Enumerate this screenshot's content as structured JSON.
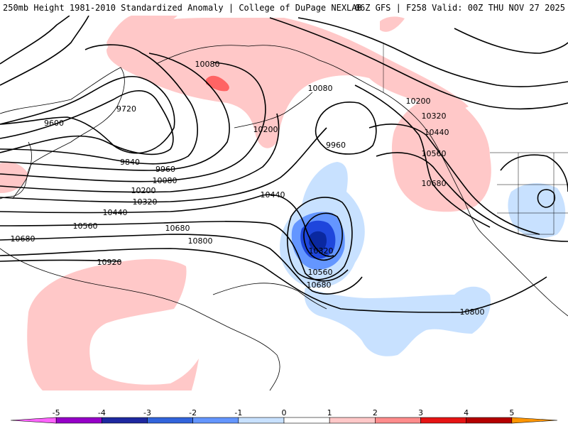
{
  "header": {
    "title": "250mb Height 1981-2010 Standardized Anomaly | College of DuPage NEXLAB",
    "run_info": "06Z GFS | F258 Valid: 00Z THU NOV 27 2025"
  },
  "colors": {
    "pos1": "#ffc8c8",
    "pos2": "#ff6464",
    "neg1": "#c8e1ff",
    "neg2": "#6496ff",
    "neg3": "#1e46dc",
    "neg4": "#0a28a0",
    "contour": "#000000",
    "coast": "#000000"
  },
  "contour_labels": [
    {
      "name": "label-10080-a",
      "text": "10080"
    },
    {
      "name": "label-9720",
      "text": "9720"
    },
    {
      "name": "label-9600",
      "text": "9600"
    },
    {
      "name": "label-10080-b",
      "text": "10080"
    },
    {
      "name": "label-10200-a",
      "text": "10200"
    },
    {
      "name": "label-9840",
      "text": "9840"
    },
    {
      "name": "label-9960-a",
      "text": "9960"
    },
    {
      "name": "label-10080-c",
      "text": "10080"
    },
    {
      "name": "label-10200-b",
      "text": "10200"
    },
    {
      "name": "label-10320-a",
      "text": "10320"
    },
    {
      "name": "label-10440-a",
      "text": "10440"
    },
    {
      "name": "label-10560-a",
      "text": "10560"
    },
    {
      "name": "label-10680-a",
      "text": "10680"
    },
    {
      "name": "label-10800-a",
      "text": "10800"
    },
    {
      "name": "label-10920",
      "text": "10920"
    },
    {
      "name": "label-9960-b",
      "text": "9960"
    },
    {
      "name": "label-10440-b",
      "text": "10440"
    },
    {
      "name": "label-10680-b",
      "text": "10680"
    },
    {
      "name": "label-10320-b",
      "text": "10320"
    },
    {
      "name": "label-10560-b",
      "text": "10560"
    },
    {
      "name": "label-10680-c",
      "text": "10680"
    },
    {
      "name": "label-10200-c",
      "text": "10200"
    },
    {
      "name": "label-10320-c",
      "text": "10320"
    },
    {
      "name": "label-10440-c",
      "text": "10440"
    },
    {
      "name": "label-10560-c",
      "text": "10560"
    },
    {
      "name": "label-10680-d",
      "text": "10680"
    },
    {
      "name": "label-10800-b",
      "text": "10800"
    }
  ],
  "legend": {
    "labels": [
      "-5",
      "-4",
      "-3",
      "-2",
      "-1",
      "0",
      "1",
      "2",
      "3",
      "4",
      "5"
    ],
    "colors": [
      "#ff64ff",
      "#9600c8",
      "#1e28a0",
      "#3264dc",
      "#6496ff",
      "#c8e1ff",
      "#ffffff",
      "#ffc8c8",
      "#ff8c8c",
      "#e61414",
      "#b40000",
      "#ff9600"
    ]
  }
}
